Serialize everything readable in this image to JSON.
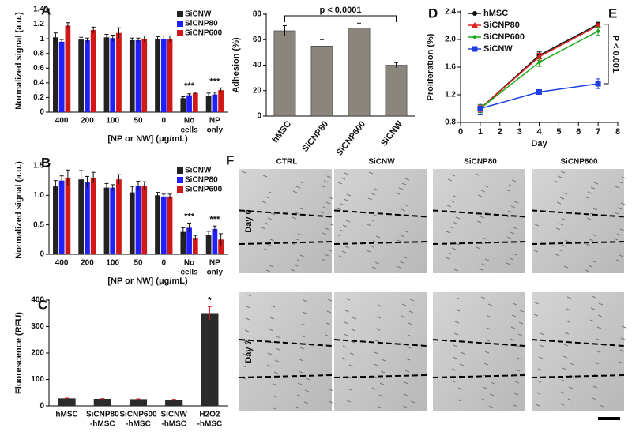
{
  "chart_data": [
    {
      "type": "bar",
      "panel": "A",
      "y_label": "Normalized signal (a.u.)",
      "x_label": "[NP or NW] (μg/mL)",
      "categories": [
        [
          "400"
        ],
        [
          "200"
        ],
        [
          "100"
        ],
        [
          "50"
        ],
        [
          "0"
        ],
        [
          "No",
          "cells"
        ],
        [
          "NP",
          "only"
        ]
      ],
      "series": [
        {
          "name": "SiCNW",
          "color": "#222222",
          "values": [
            1.02,
            0.99,
            1.02,
            0.98,
            1.0,
            0.19,
            0.22
          ],
          "errors": [
            0.06,
            0.03,
            0.04,
            0.03,
            0.03,
            0.02,
            0.04
          ]
        },
        {
          "name": "SiCNP80",
          "color": "#1f1fff",
          "values": [
            0.96,
            0.98,
            1.01,
            0.98,
            1.0,
            0.23,
            0.24
          ],
          "errors": [
            0.03,
            0.03,
            0.04,
            0.03,
            0.04,
            0.02,
            0.03
          ]
        },
        {
          "name": "SiCNP600",
          "color": "#d01818",
          "values": [
            1.18,
            1.12,
            1.08,
            1.0,
            1.0,
            0.26,
            0.3
          ],
          "errors": [
            0.04,
            0.04,
            0.07,
            0.04,
            0.04,
            0.01,
            0.03
          ]
        }
      ],
      "annotations": [
        null,
        null,
        null,
        null,
        null,
        "***",
        "***"
      ],
      "ylim": [
        0,
        1.4
      ],
      "yticks": [
        0,
        0.2,
        0.4,
        0.6,
        0.8,
        1,
        1.2,
        1.4
      ],
      "legend": "upper right"
    },
    {
      "type": "bar",
      "panel": "B",
      "y_label": "Normalized signal (a.u.)",
      "x_label": "[NP or NW] (μg/mL)",
      "categories": [
        [
          "400"
        ],
        [
          "200"
        ],
        [
          "100"
        ],
        [
          "50"
        ],
        [
          "0"
        ],
        [
          "No",
          "cells"
        ],
        [
          "NP",
          "only"
        ]
      ],
      "series": [
        {
          "name": "SiCNW",
          "color": "#222222",
          "values": [
            1.15,
            1.27,
            1.13,
            1.05,
            1.0,
            0.38,
            0.33
          ],
          "errors": [
            0.1,
            0.15,
            0.07,
            0.1,
            0.05,
            0.07,
            0.06
          ]
        },
        {
          "name": "SiCNP80",
          "color": "#1f1fff",
          "values": [
            1.25,
            1.22,
            1.13,
            1.16,
            0.98,
            0.45,
            0.43
          ],
          "errors": [
            0.08,
            0.1,
            0.05,
            0.08,
            0.04,
            0.08,
            0.05
          ]
        },
        {
          "name": "SiCNP600",
          "color": "#d01818",
          "values": [
            1.3,
            1.3,
            1.27,
            1.16,
            0.98,
            0.28,
            0.25
          ],
          "errors": [
            0.13,
            0.09,
            0.08,
            0.07,
            0.04,
            0.04,
            0.1
          ]
        }
      ],
      "annotations": [
        null,
        null,
        null,
        null,
        null,
        "***",
        "***"
      ],
      "ylim": [
        0,
        1.5
      ],
      "yticks": [
        0,
        0.5,
        {
          "value": 1,
          "label": "1.0"
        },
        1.5
      ],
      "legend": "upper right"
    },
    {
      "type": "bar",
      "panel": "C",
      "y_label": "Fluorescence (RFU)",
      "categories": [
        [
          "hMSC"
        ],
        [
          "SiCNP80",
          "-hMSC"
        ],
        [
          "SiCNP600",
          "-hMSC"
        ],
        [
          "SiCNW",
          "-hMSC"
        ],
        [
          "H2O2",
          "-hMSC"
        ]
      ],
      "values": [
        28,
        26,
        25,
        22,
        350
      ],
      "errors": [
        2,
        2,
        2,
        3,
        25
      ],
      "color": "#2b2b2b",
      "error_color": "#d62020",
      "annotations": [
        null,
        null,
        null,
        null,
        "*"
      ],
      "ylim": [
        0,
        400
      ],
      "yticks": [
        0,
        100,
        200,
        300,
        400
      ]
    },
    {
      "type": "bar",
      "panel": "D",
      "y_label": "Adhesion (%)",
      "annotation": "p < 0.0001",
      "categories": [
        [
          "hMSC"
        ],
        [
          "SiCNP80"
        ],
        [
          "SiCNP600"
        ],
        [
          "SiCNW"
        ]
      ],
      "values": [
        67,
        55,
        69,
        40
      ],
      "errors": [
        4,
        5,
        4,
        2
      ],
      "color": "#8a857d",
      "ylim": [
        0,
        80
      ],
      "yticks": [
        0,
        20,
        40,
        60,
        80
      ],
      "rotate_labels": true
    },
    {
      "type": "line",
      "panel": "E",
      "y_label": "Proliferation (%)",
      "x_label": "Day",
      "annotation": "P < 0.001",
      "x": [
        1,
        4,
        7
      ],
      "series": [
        {
          "name": "hMSC",
          "color": "#111111",
          "marker": "circle",
          "values": [
            1.0,
            1.77,
            2.22
          ],
          "errors": [
            0.05,
            0.05,
            0.03
          ]
        },
        {
          "name": "SiCNP80",
          "color": "#e02020",
          "marker": "triangle",
          "values": [
            1.0,
            1.75,
            2.2
          ],
          "errors": [
            0.05,
            0.05,
            0.03
          ]
        },
        {
          "name": "SiCNP600",
          "color": "#18a818",
          "marker": "diamond",
          "values": [
            1.0,
            1.67,
            2.12
          ],
          "errors": [
            0.06,
            0.06,
            0.06
          ]
        },
        {
          "name": "SiCNW",
          "color": "#1f3fe0",
          "marker": "square",
          "values": [
            1.0,
            1.24,
            1.36
          ],
          "errors": [
            0.08,
            0.03,
            0.07
          ]
        }
      ],
      "xlim": [
        0,
        8
      ],
      "xticks": [
        0,
        1,
        2,
        3,
        4,
        5,
        6,
        7,
        8
      ],
      "ylim": [
        0.8,
        2.4
      ],
      "yticks": [
        0.8,
        1.2,
        1.6,
        {
          "value": 2,
          "label": "2.0"
        },
        2.4
      ],
      "legend": "upper left"
    }
  ],
  "micrograph_panel": {
    "panel": "F",
    "columns": [
      "CTRL",
      "SiCNW",
      "SiCNP80",
      "SiCNP600"
    ],
    "rows": [
      "Day 0",
      "Day 7"
    ]
  }
}
